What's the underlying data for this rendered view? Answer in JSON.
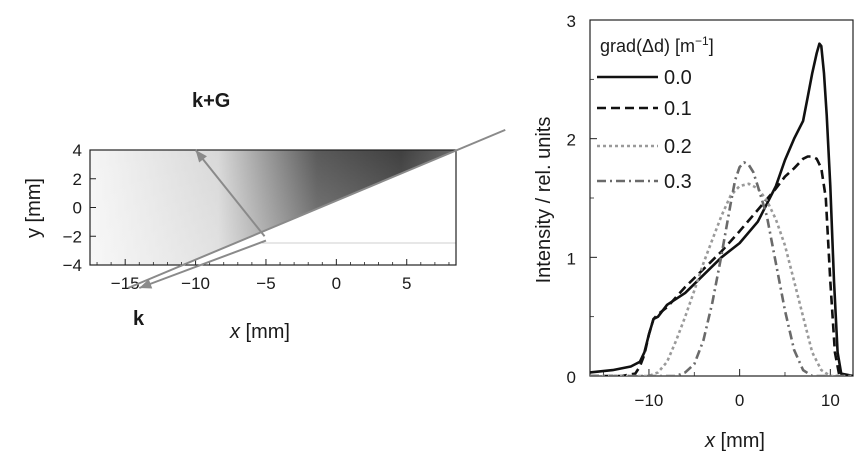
{
  "chart_data": [
    {
      "type": "heatmap",
      "title": "",
      "xlabel": "x [mm]",
      "ylabel": "y [mm]",
      "xlim": [
        -17.5,
        8.5
      ],
      "ylim": [
        -4,
        4
      ],
      "xticks": [
        -15,
        -10,
        -5,
        0,
        5
      ],
      "yticks": [
        -4,
        -2,
        0,
        2,
        4
      ],
      "x_tick_labels": [
        "−15",
        "−10",
        "−5",
        "0",
        "5"
      ],
      "y_tick_labels": [
        "−4",
        "−2",
        "0",
        "2",
        "4"
      ],
      "annotations": [
        {
          "label": "k+G",
          "bold": true,
          "arrow_from": [
            -5.1,
            -2.0
          ],
          "arrow_to": [
            -10.0,
            4.0
          ]
        },
        {
          "label": "k",
          "bold": true,
          "arrow_from": [
            -5.0,
            -2.3
          ],
          "arrow_to": [
            -14.0,
            -5.6
          ]
        }
      ],
      "boundary_line": {
        "from": [
          -14.8,
          -5.6
        ],
        "to": [
          12.0,
          5.4
        ]
      },
      "colors": {
        "arrow": "#8a8a8a",
        "intensity_high": "#3a3a3a",
        "intensity_low": "#f4f4f4"
      }
    },
    {
      "type": "line",
      "title": "",
      "xlabel": "x [mm]",
      "ylabel": "Intensity / rel. units",
      "xlim": [
        -16.5,
        12.5
      ],
      "ylim": [
        0,
        3
      ],
      "xticks": [
        -10,
        0,
        10
      ],
      "yticks": [
        0,
        1,
        2,
        3
      ],
      "x_tick_labels": [
        "−10",
        "0",
        "10"
      ],
      "y_tick_labels": [
        "0",
        "1",
        "2",
        "3"
      ],
      "legend_title": "grad(Δd) [m−1]",
      "legend_title_parts": [
        "grad(Δd) [m",
        "−1",
        "]"
      ],
      "legend_placement": "top-left",
      "series": [
        {
          "name": "0.0",
          "color": "#111111",
          "dash": "solid",
          "x": [
            -16.5,
            -14,
            -12,
            -11,
            -10.5,
            -10,
            -9.5,
            -9,
            -8,
            -6,
            -4,
            -2,
            0,
            2,
            4,
            5,
            6,
            7,
            7.5,
            8,
            8.5,
            8.8,
            9,
            9.3,
            9.6,
            10,
            10.4,
            10.8,
            11.2,
            12.5
          ],
          "y": [
            0.03,
            0.05,
            0.08,
            0.12,
            0.2,
            0.35,
            0.48,
            0.5,
            0.6,
            0.7,
            0.85,
            1.0,
            1.12,
            1.3,
            1.6,
            1.82,
            2.0,
            2.15,
            2.35,
            2.55,
            2.72,
            2.8,
            2.78,
            2.55,
            2.2,
            1.6,
            0.8,
            0.2,
            0.02,
            0.0
          ]
        },
        {
          "name": "0.1",
          "color": "#111111",
          "dash": "dashed",
          "x": [
            -16.5,
            -13,
            -11.5,
            -11,
            -10.5,
            -10,
            -9.5,
            -9,
            -8,
            -6,
            -4,
            -2,
            0,
            2,
            4,
            5,
            6,
            7,
            7.5,
            8,
            8.5,
            9,
            9.5,
            10,
            10.5,
            11,
            12.5
          ],
          "y": [
            0.0,
            0.0,
            0.02,
            0.08,
            0.18,
            0.35,
            0.48,
            0.52,
            0.58,
            0.75,
            0.9,
            1.05,
            1.22,
            1.4,
            1.58,
            1.68,
            1.75,
            1.83,
            1.85,
            1.85,
            1.83,
            1.75,
            1.5,
            0.8,
            0.2,
            0.0,
            0.0
          ]
        },
        {
          "name": "0.2",
          "color": "#9a9a9a",
          "dash": "dotted",
          "x": [
            -16.5,
            -10,
            -9,
            -8,
            -7,
            -6,
            -5,
            -4,
            -3,
            -2,
            -1,
            0,
            1,
            2,
            3,
            4,
            5,
            6,
            7,
            8,
            9,
            10,
            12.5
          ],
          "y": [
            0.0,
            0.0,
            0.03,
            0.12,
            0.3,
            0.5,
            0.72,
            0.95,
            1.15,
            1.35,
            1.52,
            1.6,
            1.62,
            1.58,
            1.48,
            1.32,
            1.1,
            0.8,
            0.5,
            0.2,
            0.05,
            0.0,
            0.0
          ]
        },
        {
          "name": "0.3",
          "color": "#6a6a6a",
          "dash": "dashdot",
          "x": [
            -16.5,
            -7,
            -6,
            -5,
            -4,
            -3,
            -2,
            -1,
            -0.5,
            0,
            0.5,
            1,
            1.5,
            2,
            3,
            4,
            5,
            6,
            7,
            8,
            12.5
          ],
          "y": [
            0.0,
            0.0,
            0.03,
            0.1,
            0.3,
            0.62,
            1.02,
            1.45,
            1.65,
            1.76,
            1.8,
            1.78,
            1.72,
            1.6,
            1.35,
            0.95,
            0.55,
            0.22,
            0.05,
            0.0,
            0.0
          ]
        }
      ]
    }
  ]
}
